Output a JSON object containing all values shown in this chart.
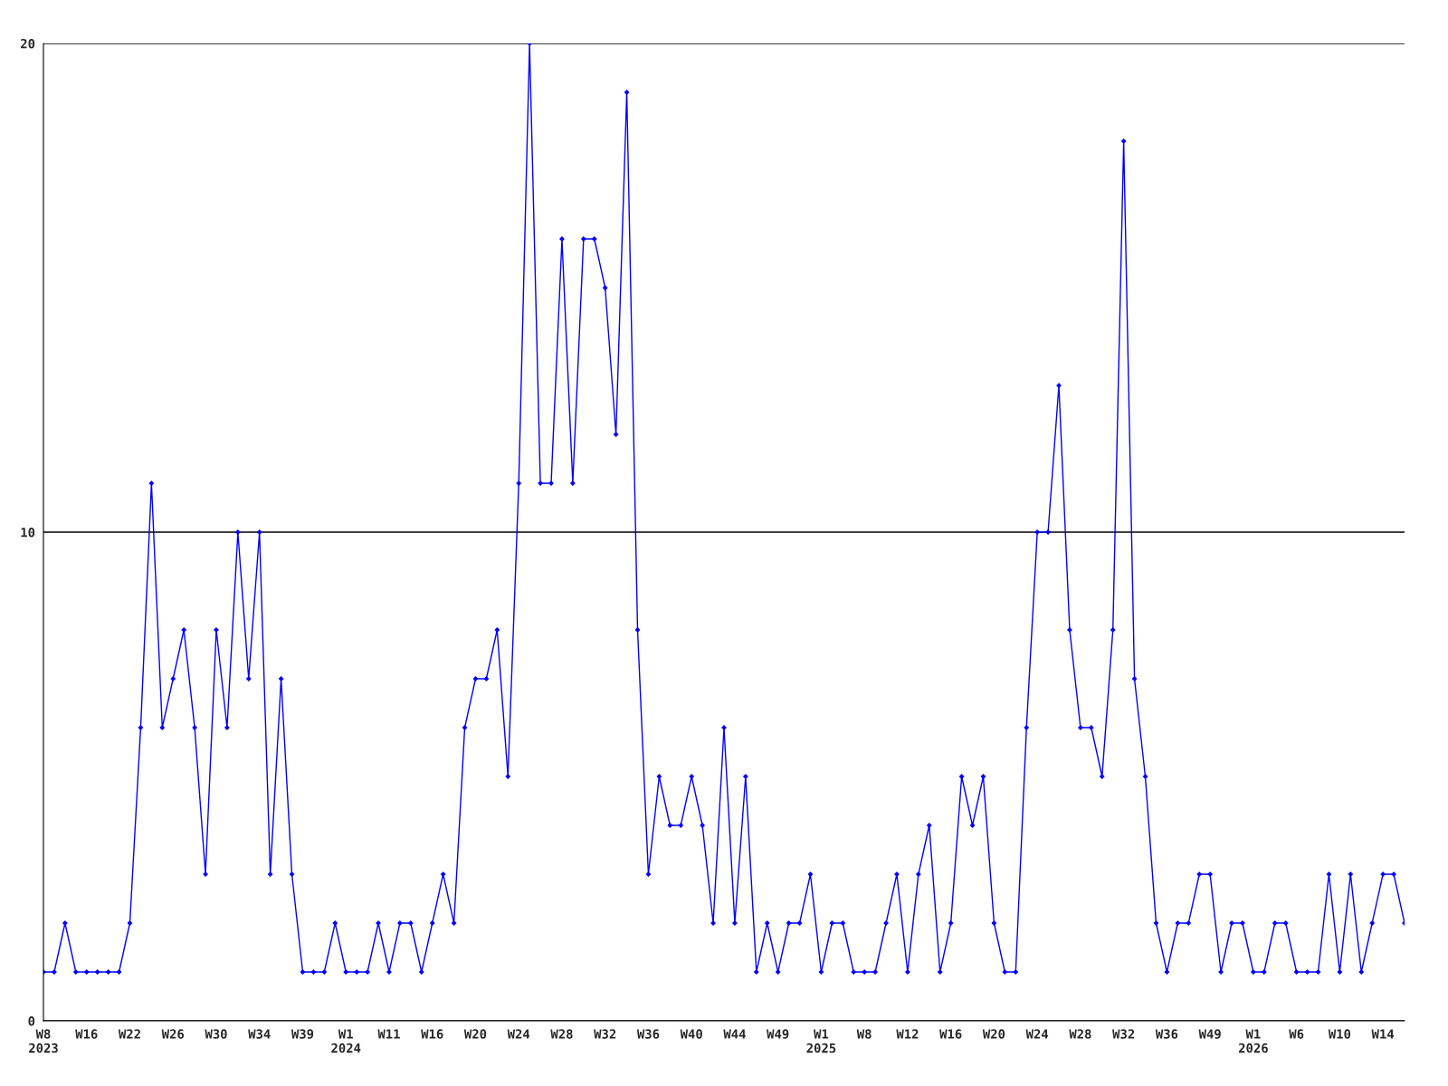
{
  "chart_data": {
    "type": "line",
    "categories": [
      "W8\n2023",
      null,
      null,
      null,
      "W16",
      null,
      null,
      null,
      "W22",
      null,
      null,
      null,
      "W26",
      null,
      null,
      null,
      "W30",
      null,
      null,
      null,
      "W34",
      null,
      null,
      null,
      "W39",
      null,
      null,
      null,
      "W1\n2024",
      null,
      null,
      null,
      "W11",
      null,
      null,
      null,
      "W16",
      null,
      null,
      null,
      "W20",
      null,
      null,
      null,
      "W24",
      null,
      null,
      null,
      "W28",
      null,
      null,
      null,
      "W32",
      null,
      null,
      null,
      "W36",
      null,
      null,
      null,
      "W40",
      null,
      null,
      null,
      "W44",
      null,
      null,
      null,
      "W49",
      null,
      null,
      null,
      "W1\n2025",
      null,
      null,
      null,
      "W8",
      null,
      null,
      null,
      "W12",
      null,
      null,
      null,
      "W16",
      null,
      null,
      null,
      "W20",
      null,
      null,
      null,
      "W24",
      null,
      null,
      null,
      "W28",
      null,
      null,
      null,
      "W32",
      null,
      null,
      null,
      "W36",
      null,
      null,
      null,
      "W49",
      null,
      null,
      null,
      "W1\n2026",
      null,
      null,
      null,
      "W6",
      null,
      null,
      null,
      "W10",
      null,
      null,
      null,
      "W14",
      null,
      null
    ],
    "series": [
      {
        "color": "#0000ff",
        "values": [
          1,
          1,
          2,
          1,
          1,
          1,
          1,
          1,
          2,
          6,
          11,
          6,
          7,
          8,
          6,
          3,
          8,
          6,
          10,
          7,
          10,
          3,
          7,
          3,
          1,
          1,
          1,
          2,
          1,
          1,
          1,
          2,
          1,
          2,
          2,
          1,
          2,
          3,
          2,
          6,
          7,
          7,
          8,
          5,
          11,
          20,
          11,
          11,
          16,
          11,
          16,
          16,
          15,
          12,
          19,
          8,
          3,
          5,
          4,
          4,
          5,
          4,
          2,
          6,
          2,
          5,
          1,
          2,
          1,
          2,
          2,
          3,
          1,
          2,
          2,
          1,
          1,
          1,
          2,
          3,
          1,
          3,
          4,
          1,
          2,
          5,
          4,
          5,
          2,
          1,
          1,
          6,
          10,
          10,
          13,
          8,
          6,
          6,
          5,
          8,
          18,
          7,
          5,
          2,
          1,
          2,
          2,
          3,
          3,
          1,
          2,
          2,
          1,
          1,
          2,
          2,
          1,
          1,
          1,
          3,
          1,
          3,
          1,
          2,
          3,
          3,
          2
        ]
      }
    ],
    "ylim": [
      0,
      20
    ],
    "yticks": [
      0,
      10,
      20
    ],
    "grid": "y",
    "marker": "diamond",
    "line_style": "solid"
  }
}
